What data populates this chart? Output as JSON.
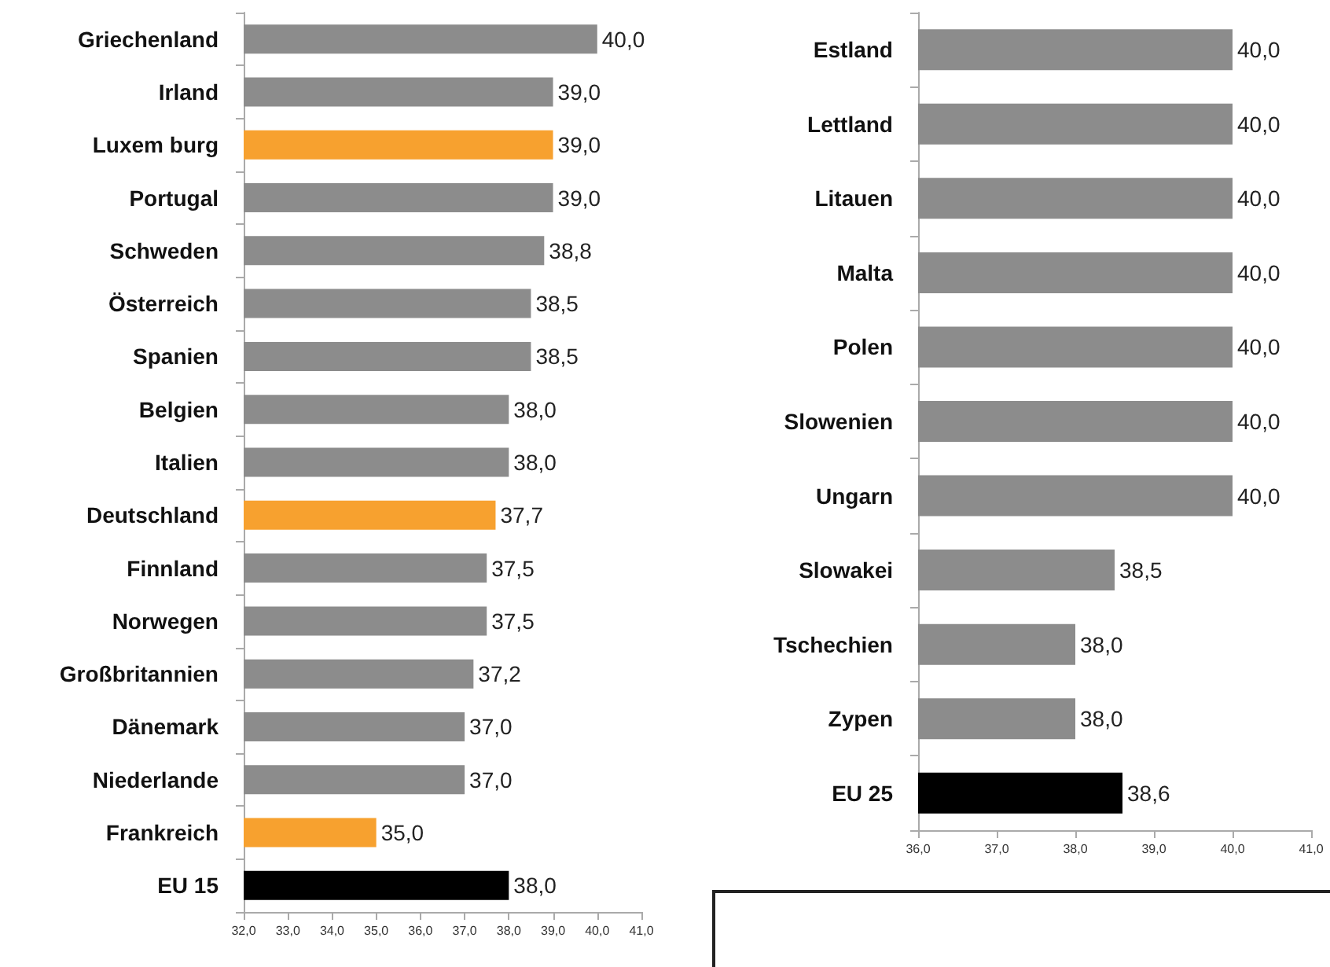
{
  "chart_data": [
    {
      "type": "bar",
      "orientation": "horizontal",
      "categories": [
        "Griechenland",
        "Irland",
        "Luxem burg",
        "Portugal",
        "Schweden",
        "Österreich",
        "Spanien",
        "Belgien",
        "Italien",
        "Deutschland",
        "Finnland",
        "Norwegen",
        "Großbritannien",
        "Dänemark",
        "Niederlande",
        "Frankreich",
        "EU 15"
      ],
      "values": [
        40.0,
        39.0,
        39.0,
        39.0,
        38.8,
        38.5,
        38.5,
        38.0,
        38.0,
        37.7,
        37.5,
        37.5,
        37.2,
        37.0,
        37.0,
        35.0,
        38.0
      ],
      "value_labels": [
        "40,0",
        "39,0",
        "39,0",
        "39,0",
        "38,8",
        "38,5",
        "38,5",
        "38,0",
        "38,0",
        "37,7",
        "37,5",
        "37,5",
        "37,2",
        "37,0",
        "37,0",
        "35,0",
        "38,0"
      ],
      "colors": [
        "#8c8c8c",
        "#8c8c8c",
        "#f7a12f",
        "#8c8c8c",
        "#8c8c8c",
        "#8c8c8c",
        "#8c8c8c",
        "#8c8c8c",
        "#8c8c8c",
        "#f7a12f",
        "#8c8c8c",
        "#8c8c8c",
        "#8c8c8c",
        "#8c8c8c",
        "#8c8c8c",
        "#f7a12f",
        "#000000"
      ],
      "xlim": [
        32,
        41
      ],
      "xticks": [
        {
          "value": 32,
          "label": "32,0"
        },
        {
          "value": 33,
          "label": "33,0"
        },
        {
          "value": 34,
          "label": "34,0"
        },
        {
          "value": 35,
          "label": "35,0"
        },
        {
          "value": 36,
          "label": "36,0"
        },
        {
          "value": 37,
          "label": "37,0"
        },
        {
          "value": 38,
          "label": "38,0"
        },
        {
          "value": 39,
          "label": "39,0"
        },
        {
          "value": 40,
          "label": "40,0"
        },
        {
          "value": 41,
          "label": "41,0"
        }
      ],
      "grid": false
    },
    {
      "type": "bar",
      "orientation": "horizontal",
      "categories": [
        "Estland",
        "Lettland",
        "Litauen",
        "Malta",
        "Polen",
        "Slowenien",
        "Ungarn",
        "Slowakei",
        "Tschechien",
        "Zypen",
        "EU 25"
      ],
      "values": [
        40.0,
        40.0,
        40.0,
        40.0,
        40.0,
        40.0,
        40.0,
        38.5,
        38.0,
        38.0,
        38.6
      ],
      "value_labels": [
        "40,0",
        "40,0",
        "40,0",
        "40,0",
        "40,0",
        "40,0",
        "40,0",
        "38,5",
        "38,0",
        "38,0",
        "38,6"
      ],
      "colors": [
        "#8c8c8c",
        "#8c8c8c",
        "#8c8c8c",
        "#8c8c8c",
        "#8c8c8c",
        "#8c8c8c",
        "#8c8c8c",
        "#8c8c8c",
        "#8c8c8c",
        "#8c8c8c",
        "#000000"
      ],
      "xlim": [
        36,
        41
      ],
      "xticks": [
        {
          "value": 36,
          "label": "36,0"
        },
        {
          "value": 37,
          "label": "37,0"
        },
        {
          "value": 38,
          "label": "38,0"
        },
        {
          "value": 39,
          "label": "39,0"
        },
        {
          "value": 40,
          "label": "40,0"
        },
        {
          "value": 41,
          "label": "41,0"
        }
      ],
      "grid": false
    }
  ]
}
